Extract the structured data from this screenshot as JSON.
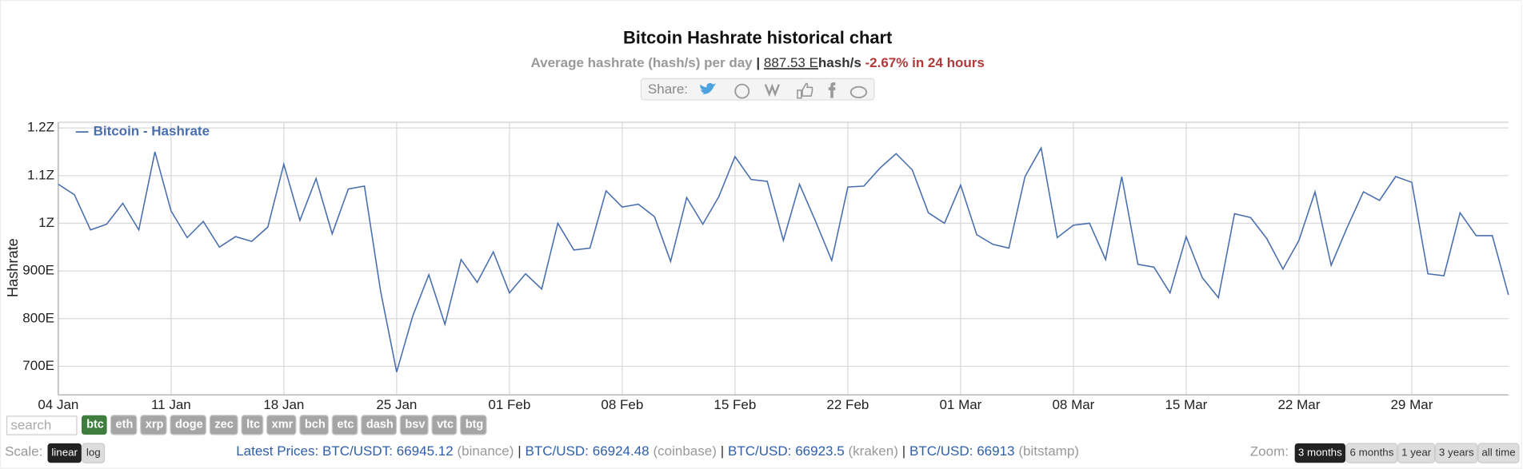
{
  "chart_data": {
    "type": "line",
    "title": "Bitcoin Hashrate historical chart",
    "ylabel": "Hashrate",
    "x": [
      "04 Jan",
      "05 Jan",
      "06 Jan",
      "07 Jan",
      "08 Jan",
      "09 Jan",
      "10 Jan",
      "11 Jan",
      "12 Jan",
      "13 Jan",
      "14 Jan",
      "15 Jan",
      "16 Jan",
      "17 Jan",
      "18 Jan",
      "19 Jan",
      "20 Jan",
      "21 Jan",
      "22 Jan",
      "23 Jan",
      "24 Jan",
      "25 Jan",
      "26 Jan",
      "27 Jan",
      "28 Jan",
      "29 Jan",
      "30 Jan",
      "31 Jan",
      "01 Feb",
      "02 Feb",
      "03 Feb",
      "04 Feb",
      "05 Feb",
      "06 Feb",
      "07 Feb",
      "08 Feb",
      "09 Feb",
      "10 Feb",
      "11 Feb",
      "12 Feb",
      "13 Feb",
      "14 Feb",
      "15 Feb",
      "16 Feb",
      "17 Feb",
      "18 Feb",
      "19 Feb",
      "20 Feb",
      "21 Feb",
      "22 Feb",
      "23 Feb",
      "24 Feb",
      "25 Feb",
      "26 Feb",
      "27 Feb",
      "28 Feb",
      "01 Mar",
      "02 Mar",
      "03 Mar",
      "04 Mar",
      "05 Mar",
      "06 Mar",
      "07 Mar",
      "08 Mar",
      "09 Mar",
      "10 Mar",
      "11 Mar",
      "12 Mar",
      "13 Mar",
      "14 Mar",
      "15 Mar",
      "16 Mar",
      "17 Mar",
      "18 Mar",
      "19 Mar",
      "20 Mar",
      "21 Mar",
      "22 Mar",
      "23 Mar",
      "24 Mar",
      "25 Mar",
      "26 Mar",
      "27 Mar",
      "28 Mar",
      "29 Mar",
      "30 Mar",
      "31 Mar",
      "01 Apr",
      "02 Apr",
      "03 Apr",
      "04 Apr"
    ],
    "series": [
      {
        "name": "Bitcoin - Hashrate",
        "color": "#4a6fae",
        "values": [
          1082,
          1060,
          986,
          998,
          1042,
          986,
          1150,
          1026,
          970,
          1004,
          950,
          972,
          962,
          992,
          1124,
          1006,
          1094,
          978,
          1072,
          1078,
          858,
          688,
          806,
          892,
          788,
          924,
          876,
          940,
          854,
          894,
          862,
          1000,
          944,
          948,
          1068,
          1034,
          1040,
          1014,
          920,
          1054,
          998,
          1056,
          1140,
          1092,
          1088,
          964,
          1082,
          1004,
          922,
          1076,
          1078,
          1116,
          1146,
          1112,
          1022,
          1000,
          1080,
          976,
          956,
          948,
          1098,
          1158,
          970,
          996,
          1000,
          924,
          1098,
          914,
          908,
          854,
          972,
          886,
          844,
          1020,
          1012,
          968,
          904,
          964,
          1066,
          912,
          992,
          1066,
          1048,
          1098,
          1086,
          894,
          890,
          1022,
          974,
          974,
          850
        ]
      }
    ],
    "ylim": [
      640,
      1212
    ],
    "yticks": [
      {
        "value": 700,
        "label": "700E"
      },
      {
        "value": 800,
        "label": "800E"
      },
      {
        "value": 900,
        "label": "900E"
      },
      {
        "value": 1000,
        "label": "1Z"
      },
      {
        "value": 1100,
        "label": "1.1Z"
      },
      {
        "value": 1200,
        "label": "1.2Z"
      }
    ],
    "xticks": [
      "04 Jan",
      "11 Jan",
      "18 Jan",
      "25 Jan",
      "01 Feb",
      "08 Feb",
      "15 Feb",
      "22 Feb",
      "01 Mar",
      "08 Mar",
      "15 Mar",
      "22 Mar",
      "29 Mar"
    ],
    "grid": true,
    "legend": "top-left"
  },
  "page": {
    "subtitle": {
      "label": "Average hashrate (hash/s) per day",
      "separator": "|",
      "value": "887.53 E",
      "unit": "hash/s",
      "change": "-2.67% in 24 hours"
    },
    "share": "Share:",
    "search": "search",
    "coins": [
      "btc",
      "eth",
      "xrp",
      "doge",
      "zec",
      "ltc",
      "xmr",
      "bch",
      "etc",
      "dash",
      "bsv",
      "vtc",
      "btg"
    ],
    "coins_active": "btc",
    "scale": {
      "label": "Scale:",
      "options": [
        "linear",
        "log"
      ],
      "active": "linear"
    },
    "prices": {
      "label": "Latest Prices:",
      "separator": "|",
      "items": [
        {
          "pair": "BTC/USDT:",
          "price": 66945.12,
          "source": "(binance)"
        },
        {
          "pair": "BTC/USD:",
          "price": 66924.48,
          "source": "(coinbase)"
        },
        {
          "pair": "BTC/USD:",
          "price": 66923.5,
          "source": "(kraken)"
        },
        {
          "pair": "BTC/USD:",
          "price": 66913,
          "source": "(bitstamp)"
        }
      ]
    },
    "zoom": {
      "label": "Zoom:",
      "options": [
        "3 months",
        "6 months",
        "1 year",
        "3 years",
        "all time"
      ],
      "active": "3 months"
    }
  }
}
